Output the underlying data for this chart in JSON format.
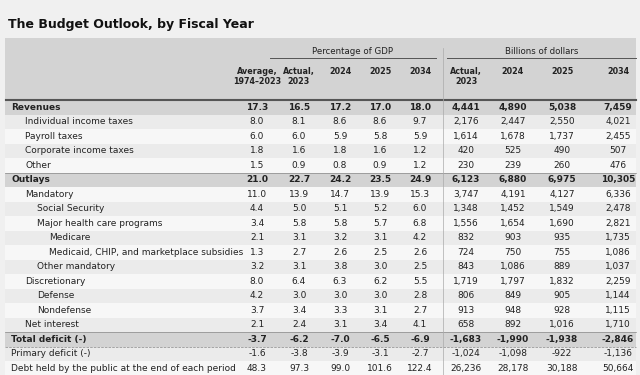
{
  "title": "The Budget Outlook, by Fiscal Year",
  "rows": [
    {
      "label": "Revenues",
      "indent": 0,
      "bold": true,
      "vals": [
        "17.3",
        "16.5",
        "17.2",
        "17.0",
        "18.0",
        "4,441",
        "4,890",
        "5,038",
        "7,459"
      ]
    },
    {
      "label": "Individual income taxes",
      "indent": 1,
      "bold": false,
      "vals": [
        "8.0",
        "8.1",
        "8.6",
        "8.6",
        "9.7",
        "2,176",
        "2,447",
        "2,550",
        "4,021"
      ]
    },
    {
      "label": "Payroll taxes",
      "indent": 1,
      "bold": false,
      "vals": [
        "6.0",
        "6.0",
        "5.9",
        "5.8",
        "5.9",
        "1,614",
        "1,678",
        "1,737",
        "2,455"
      ]
    },
    {
      "label": "Corporate income taxes",
      "indent": 1,
      "bold": false,
      "vals": [
        "1.8",
        "1.6",
        "1.8",
        "1.6",
        "1.2",
        "420",
        "525",
        "490",
        "507"
      ]
    },
    {
      "label": "Other",
      "indent": 1,
      "bold": false,
      "vals": [
        "1.5",
        "0.9",
        "0.8",
        "0.9",
        "1.2",
        "230",
        "239",
        "260",
        "476"
      ]
    },
    {
      "label": "Outlays",
      "indent": 0,
      "bold": true,
      "vals": [
        "21.0",
        "22.7",
        "24.2",
        "23.5",
        "24.9",
        "6,123",
        "6,880",
        "6,975",
        "10,305"
      ]
    },
    {
      "label": "Mandatory",
      "indent": 1,
      "bold": false,
      "vals": [
        "11.0",
        "13.9",
        "14.7",
        "13.9",
        "15.3",
        "3,747",
        "4,191",
        "4,127",
        "6,336"
      ]
    },
    {
      "label": "Social Security",
      "indent": 2,
      "bold": false,
      "vals": [
        "4.4",
        "5.0",
        "5.1",
        "5.2",
        "6.0",
        "1,348",
        "1,452",
        "1,549",
        "2,478"
      ]
    },
    {
      "label": "Major health care programs",
      "indent": 2,
      "bold": false,
      "vals": [
        "3.4",
        "5.8",
        "5.8",
        "5.7",
        "6.8",
        "1,556",
        "1,654",
        "1,690",
        "2,821"
      ]
    },
    {
      "label": "Medicare",
      "indent": 3,
      "bold": false,
      "vals": [
        "2.1",
        "3.1",
        "3.2",
        "3.1",
        "4.2",
        "832",
        "903",
        "935",
        "1,735"
      ]
    },
    {
      "label": "Medicaid, CHIP, and marketplace subsidies",
      "indent": 3,
      "bold": false,
      "vals": [
        "1.3",
        "2.7",
        "2.6",
        "2.5",
        "2.6",
        "724",
        "750",
        "755",
        "1,086"
      ]
    },
    {
      "label": "Other mandatory",
      "indent": 2,
      "bold": false,
      "vals": [
        "3.2",
        "3.1",
        "3.8",
        "3.0",
        "2.5",
        "843",
        "1,086",
        "889",
        "1,037"
      ]
    },
    {
      "label": "Discretionary",
      "indent": 1,
      "bold": false,
      "vals": [
        "8.0",
        "6.4",
        "6.3",
        "6.2",
        "5.5",
        "1,719",
        "1,797",
        "1,832",
        "2,259"
      ]
    },
    {
      "label": "Defense",
      "indent": 2,
      "bold": false,
      "vals": [
        "4.2",
        "3.0",
        "3.0",
        "3.0",
        "2.8",
        "806",
        "849",
        "905",
        "1,144"
      ]
    },
    {
      "label": "Nondefense",
      "indent": 2,
      "bold": false,
      "vals": [
        "3.7",
        "3.4",
        "3.3",
        "3.1",
        "2.7",
        "913",
        "948",
        "928",
        "1,115"
      ]
    },
    {
      "label": "Net interest",
      "indent": 1,
      "bold": false,
      "vals": [
        "2.1",
        "2.4",
        "3.1",
        "3.4",
        "4.1",
        "658",
        "892",
        "1,016",
        "1,710"
      ]
    },
    {
      "label": "Total deficit (-)",
      "indent": 0,
      "bold": true,
      "vals": [
        "-3.7",
        "-6.2",
        "-7.0",
        "-6.5",
        "-6.9",
        "-1,683",
        "-1,990",
        "-1,938",
        "-2,846"
      ]
    },
    {
      "label": "Primary deficit (-)",
      "indent": 0,
      "bold": false,
      "vals": [
        "-1.6",
        "-3.8",
        "-3.9",
        "-3.1",
        "-2.7",
        "-1,024",
        "-1,098",
        "-922",
        "-1,136"
      ]
    },
    {
      "label": "Debt held by the public at the end of each period",
      "indent": 0,
      "bold": false,
      "vals": [
        "48.3",
        "97.3",
        "99.0",
        "101.6",
        "122.4",
        "26,236",
        "28,178",
        "30,188",
        "50,664"
      ]
    }
  ],
  "bg_header": "#d3d3d3",
  "bg_bold_row": "#d3d3d3",
  "bg_light": "#ebebeb",
  "bg_white": "#f7f7f7",
  "text_color": "#222222",
  "title_color": "#111111",
  "line_color": "#888888",
  "fig_bg": "#f0f0f0"
}
